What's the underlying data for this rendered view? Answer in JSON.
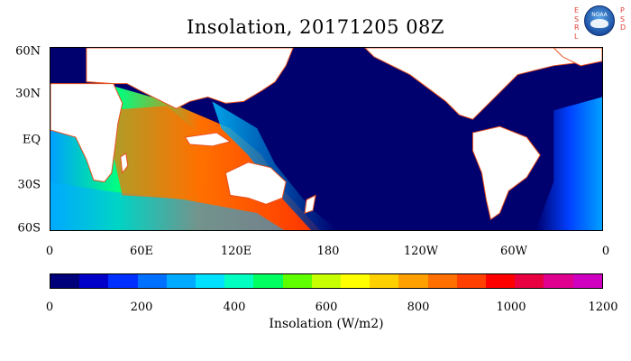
{
  "title": "Insolation, 20171205 08Z",
  "logo": {
    "agency_badge": "NOAA",
    "left_letters": [
      "E",
      "S",
      "R",
      "L"
    ],
    "right_letters": [
      "P",
      "S",
      "D"
    ]
  },
  "map": {
    "y_ticks": [
      "60N",
      "30N",
      "EQ",
      "30S",
      "60S"
    ],
    "x_ticks": [
      "0",
      "60E",
      "120E",
      "180",
      "120W",
      "60W",
      "0"
    ],
    "land_color": "#ffffff",
    "night_color": "#00006e",
    "coast_color": "#e8501e"
  },
  "colorbar": {
    "ticks": [
      "0",
      "200",
      "400",
      "600",
      "800",
      "1000",
      "1200"
    ],
    "title": "Insolation (W/m2)",
    "colors": [
      "#00007a",
      "#0000c8",
      "#0030ff",
      "#0070ff",
      "#00aaff",
      "#00e0ff",
      "#00ffc0",
      "#00ff60",
      "#60ff00",
      "#c8ff00",
      "#ffff00",
      "#ffd000",
      "#ffa000",
      "#ff7000",
      "#ff4000",
      "#ff0000",
      "#e80040",
      "#e00090",
      "#d000c0"
    ]
  }
}
